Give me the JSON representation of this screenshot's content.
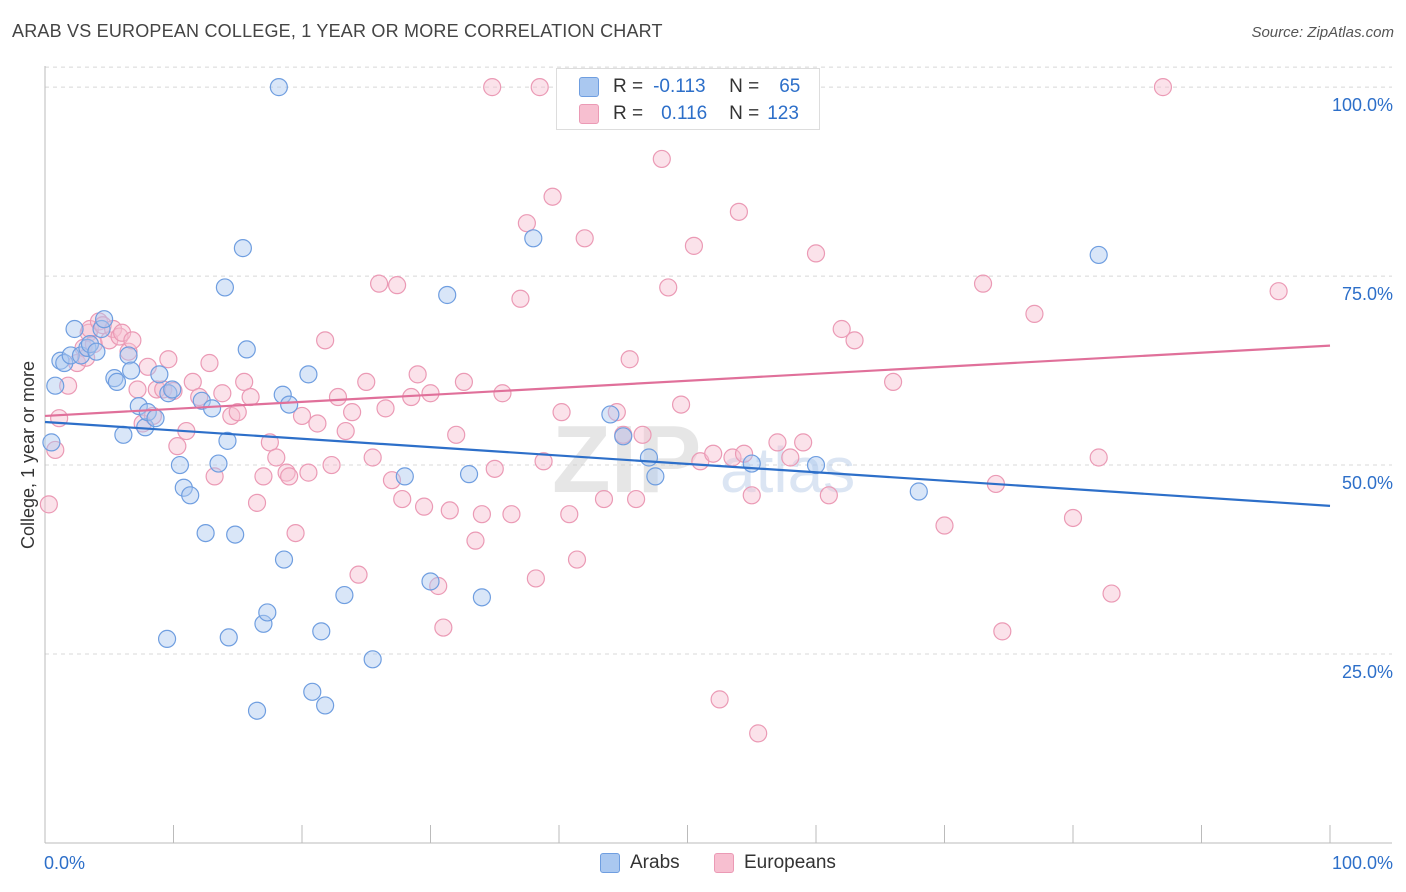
{
  "title": "ARAB VS EUROPEAN COLLEGE, 1 YEAR OR MORE CORRELATION CHART",
  "source": "Source: ZipAtlas.com",
  "watermark": {
    "zip": "ZIP",
    "atlas": "atlas"
  },
  "stats": {
    "arabs": {
      "r_label": "R =",
      "r_value": "-0.113",
      "n_label": "N =",
      "n_value": "65"
    },
    "europeans": {
      "r_label": "R =",
      "r_value": "0.116",
      "n_label": "N =",
      "n_value": "123"
    }
  },
  "legend": {
    "arabs": "Arabs",
    "europeans": "Europeans"
  },
  "colors": {
    "arabs_fill": "#aac8f0",
    "arabs_stroke": "#6f9ee0",
    "arabs_line": "#2d6fc9",
    "europeans_fill": "#f7bfd0",
    "europeans_stroke": "#eb9ab5",
    "europeans_line": "#e0709a",
    "axis_label": "#2d6fc9",
    "grid": "#d8d8d8"
  },
  "chart_data": {
    "type": "scatter",
    "ylabel": "College, 1 year or more",
    "xlabel": "",
    "xlim": [
      0,
      100
    ],
    "ylim": [
      0,
      102
    ],
    "x_tick_labels": [
      "0.0%",
      "100.0%"
    ],
    "y_ticks": [
      25,
      50,
      75,
      100
    ],
    "y_tick_labels": [
      "25.0%",
      "50.0%",
      "75.0%",
      "100.0%"
    ],
    "grid": true,
    "legend_position": "bottom",
    "series": [
      {
        "name": "Arabs",
        "trend": {
          "x0": 0,
          "y0": 55.7,
          "x1": 100,
          "y1": 44.6
        },
        "points": [
          [
            0.5,
            53.0
          ],
          [
            0.8,
            60.5
          ],
          [
            1.2,
            63.8
          ],
          [
            1.5,
            63.5
          ],
          [
            2.0,
            64.5
          ],
          [
            2.3,
            68.0
          ],
          [
            2.8,
            64.5
          ],
          [
            3.3,
            65.5
          ],
          [
            3.5,
            66.0
          ],
          [
            4.0,
            65.0
          ],
          [
            4.4,
            68.0
          ],
          [
            4.6,
            69.3
          ],
          [
            5.4,
            61.5
          ],
          [
            5.6,
            61.0
          ],
          [
            6.1,
            54.0
          ],
          [
            6.5,
            64.5
          ],
          [
            6.7,
            62.5
          ],
          [
            7.3,
            57.8
          ],
          [
            7.8,
            55.0
          ],
          [
            8.0,
            57.0
          ],
          [
            8.6,
            56.2
          ],
          [
            8.9,
            62.0
          ],
          [
            9.6,
            59.5
          ],
          [
            9.9,
            60.0
          ],
          [
            10.5,
            50.0
          ],
          [
            10.8,
            47.0
          ],
          [
            11.3,
            46.0
          ],
          [
            12.2,
            58.5
          ],
          [
            12.5,
            41.0
          ],
          [
            13.0,
            57.5
          ],
          [
            13.5,
            50.2
          ],
          [
            14.2,
            53.2
          ],
          [
            14.8,
            40.8
          ],
          [
            15.4,
            78.7
          ],
          [
            15.7,
            65.3
          ],
          [
            16.5,
            17.5
          ],
          [
            17.0,
            29.0
          ],
          [
            17.3,
            30.5
          ],
          [
            18.5,
            59.3
          ],
          [
            18.6,
            37.5
          ],
          [
            19.0,
            58.0
          ],
          [
            20.5,
            62.0
          ],
          [
            20.8,
            20.0
          ],
          [
            21.5,
            28.0
          ],
          [
            21.8,
            18.2
          ],
          [
            23.3,
            32.8
          ],
          [
            25.5,
            24.3
          ],
          [
            28.0,
            48.5
          ],
          [
            30.0,
            34.6
          ],
          [
            31.3,
            72.5
          ],
          [
            33.0,
            48.8
          ],
          [
            34.0,
            32.5
          ],
          [
            38.0,
            80.0
          ],
          [
            44.0,
            56.7
          ],
          [
            45.0,
            53.8
          ],
          [
            47.0,
            51.0
          ],
          [
            47.5,
            48.5
          ],
          [
            55.0,
            50.2
          ],
          [
            60.0,
            50.0
          ],
          [
            68.0,
            46.5
          ],
          [
            82.0,
            77.8
          ],
          [
            18.2,
            100.0
          ],
          [
            14.0,
            73.5
          ],
          [
            9.5,
            27.0
          ],
          [
            14.3,
            27.2
          ]
        ]
      },
      {
        "name": "Europeans",
        "trend": {
          "x0": 0,
          "y0": 56.5,
          "x1": 100,
          "y1": 65.8
        },
        "points": [
          [
            0.3,
            44.8
          ],
          [
            0.8,
            52.0
          ],
          [
            1.1,
            56.2
          ],
          [
            1.8,
            60.5
          ],
          [
            2.5,
            63.5
          ],
          [
            3.0,
            65.5
          ],
          [
            3.2,
            64.2
          ],
          [
            3.4,
            67.5
          ],
          [
            3.5,
            68.0
          ],
          [
            3.8,
            66.0
          ],
          [
            4.2,
            69.0
          ],
          [
            4.5,
            68.5
          ],
          [
            5.0,
            66.5
          ],
          [
            5.3,
            68.0
          ],
          [
            5.8,
            67.0
          ],
          [
            6.0,
            67.5
          ],
          [
            6.5,
            65.0
          ],
          [
            6.8,
            66.5
          ],
          [
            7.2,
            60.0
          ],
          [
            7.6,
            55.5
          ],
          [
            8.0,
            63.0
          ],
          [
            8.4,
            56.5
          ],
          [
            8.7,
            60.0
          ],
          [
            9.2,
            60.0
          ],
          [
            9.6,
            64.0
          ],
          [
            10.0,
            59.8
          ],
          [
            10.3,
            52.5
          ],
          [
            11.0,
            54.5
          ],
          [
            11.5,
            61.0
          ],
          [
            12.0,
            59.0
          ],
          [
            12.8,
            63.5
          ],
          [
            13.2,
            48.5
          ],
          [
            13.8,
            59.5
          ],
          [
            14.5,
            56.5
          ],
          [
            15.0,
            57.0
          ],
          [
            15.5,
            61.0
          ],
          [
            16.0,
            59.0
          ],
          [
            16.5,
            45.0
          ],
          [
            17.0,
            48.5
          ],
          [
            17.5,
            53.0
          ],
          [
            18.0,
            51.0
          ],
          [
            18.8,
            49.0
          ],
          [
            19.0,
            48.5
          ],
          [
            19.5,
            41.0
          ],
          [
            20.0,
            56.5
          ],
          [
            20.5,
            49.0
          ],
          [
            21.2,
            55.5
          ],
          [
            21.8,
            66.5
          ],
          [
            22.3,
            50.0
          ],
          [
            22.8,
            59.0
          ],
          [
            23.4,
            54.5
          ],
          [
            23.9,
            57.0
          ],
          [
            24.4,
            35.5
          ],
          [
            25.0,
            61.0
          ],
          [
            25.5,
            51.0
          ],
          [
            26.0,
            74.0
          ],
          [
            26.5,
            57.5
          ],
          [
            27.0,
            48.0
          ],
          [
            27.4,
            73.8
          ],
          [
            27.8,
            45.5
          ],
          [
            28.5,
            59.0
          ],
          [
            29.0,
            62.0
          ],
          [
            29.5,
            44.5
          ],
          [
            30.0,
            59.5
          ],
          [
            30.6,
            34.0
          ],
          [
            31.0,
            28.5
          ],
          [
            31.5,
            44.0
          ],
          [
            32.0,
            54.0
          ],
          [
            32.6,
            61.0
          ],
          [
            33.5,
            40.0
          ],
          [
            34.0,
            43.5
          ],
          [
            35.0,
            49.5
          ],
          [
            35.6,
            59.5
          ],
          [
            36.3,
            43.5
          ],
          [
            37.0,
            72.0
          ],
          [
            37.5,
            82.0
          ],
          [
            38.2,
            35.0
          ],
          [
            38.8,
            50.5
          ],
          [
            39.5,
            85.5
          ],
          [
            40.2,
            57.0
          ],
          [
            40.8,
            43.5
          ],
          [
            41.4,
            37.5
          ],
          [
            42.0,
            80.0
          ],
          [
            42.5,
            100.0
          ],
          [
            43.5,
            45.5
          ],
          [
            44.5,
            57.0
          ],
          [
            45.0,
            54.0
          ],
          [
            45.5,
            64.0
          ],
          [
            46.0,
            45.5
          ],
          [
            48.0,
            90.5
          ],
          [
            48.5,
            73.5
          ],
          [
            49.5,
            58.0
          ],
          [
            50.5,
            79.0
          ],
          [
            51.0,
            50.5
          ],
          [
            52.0,
            51.5
          ],
          [
            52.5,
            19.0
          ],
          [
            53.5,
            51.0
          ],
          [
            54.0,
            83.5
          ],
          [
            54.4,
            51.5
          ],
          [
            55.0,
            46.0
          ],
          [
            55.5,
            14.5
          ],
          [
            56.0,
            100.0
          ],
          [
            57.0,
            53.0
          ],
          [
            58.0,
            51.0
          ],
          [
            59.0,
            53.0
          ],
          [
            60.0,
            78.0
          ],
          [
            61.0,
            46.0
          ],
          [
            62.0,
            68.0
          ],
          [
            63.0,
            66.5
          ],
          [
            66.0,
            61.0
          ],
          [
            70.0,
            42.0
          ],
          [
            73.0,
            74.0
          ],
          [
            74.0,
            47.5
          ],
          [
            74.5,
            28.0
          ],
          [
            77.0,
            70.0
          ],
          [
            80.0,
            43.0
          ],
          [
            82.0,
            51.0
          ],
          [
            83.0,
            33.0
          ],
          [
            87.0,
            100.0
          ],
          [
            96.0,
            73.0
          ],
          [
            34.8,
            100.0
          ],
          [
            38.5,
            100.0
          ],
          [
            46.5,
            54.0
          ]
        ]
      }
    ]
  }
}
